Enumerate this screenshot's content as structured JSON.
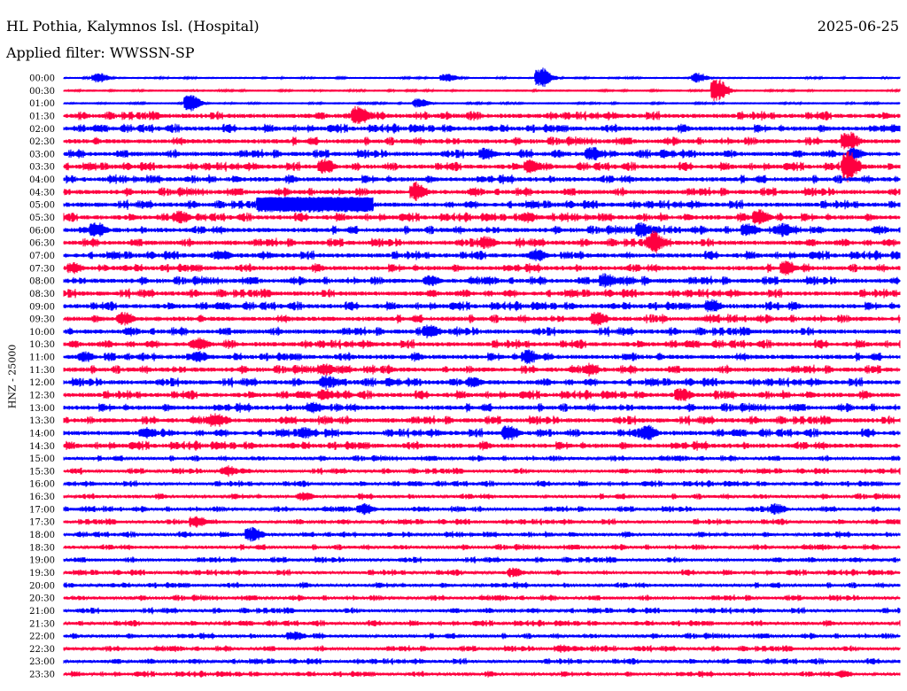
{
  "header": {
    "station": "HL Pothia, Kalymnos Isl. (Hospital)",
    "date": "2025-06-25",
    "filter": "Applied filter: WWSSN-SP"
  },
  "chart_data": {
    "type": "line",
    "title": "HL Pothia, Kalymnos Isl. (Hospital)",
    "ylabel": "HNZ - 25000",
    "xrange_minutes": [
      0,
      30
    ],
    "row_labels": [
      "00:00",
      "00:30",
      "01:00",
      "01:30",
      "02:00",
      "02:30",
      "03:00",
      "03:30",
      "04:00",
      "04:30",
      "05:00",
      "05:30",
      "06:00",
      "06:30",
      "07:00",
      "07:30",
      "08:00",
      "08:30",
      "09:00",
      "09:30",
      "10:00",
      "10:30",
      "11:00",
      "11:30",
      "12:00",
      "12:30",
      "13:00",
      "13:30",
      "14:00",
      "14:30",
      "15:00",
      "15:30",
      "16:00",
      "16:30",
      "17:00",
      "17:30",
      "18:00",
      "18:30",
      "19:00",
      "19:30",
      "20:00",
      "20:30",
      "21:00",
      "21:30",
      "22:00",
      "22:30",
      "23:00",
      "23:30"
    ],
    "colors": {
      "hour": "#0000ff",
      "half_hour": "#ff0040"
    },
    "events": [
      {
        "row": 0,
        "minute": 1.1,
        "amp": 6
      },
      {
        "row": 0,
        "minute": 13.6,
        "amp": 5
      },
      {
        "row": 0,
        "minute": 17.0,
        "amp": 12
      },
      {
        "row": 0,
        "minute": 22.6,
        "amp": 6
      },
      {
        "row": 1,
        "minute": 23.3,
        "amp": 14
      },
      {
        "row": 2,
        "minute": 4.4,
        "amp": 10
      },
      {
        "row": 2,
        "minute": 12.6,
        "amp": 6
      },
      {
        "row": 3,
        "minute": 10.4,
        "amp": 12
      },
      {
        "row": 4,
        "minute": 29.6,
        "amp": 5
      },
      {
        "row": 5,
        "minute": 28.0,
        "amp": 12
      },
      {
        "row": 6,
        "minute": 15.0,
        "amp": 8
      },
      {
        "row": 6,
        "minute": 18.8,
        "amp": 9
      },
      {
        "row": 6,
        "minute": 28.2,
        "amp": 8
      },
      {
        "row": 7,
        "minute": 9.2,
        "amp": 10
      },
      {
        "row": 7,
        "minute": 16.6,
        "amp": 9
      },
      {
        "row": 7,
        "minute": 28.0,
        "amp": 18
      },
      {
        "row": 9,
        "minute": 12.5,
        "amp": 12
      },
      {
        "row": 10,
        "minute": 9.0,
        "amp": 9,
        "width": 4.2
      },
      {
        "row": 11,
        "minute": 4.0,
        "amp": 8
      },
      {
        "row": 11,
        "minute": 16.5,
        "amp": 7
      },
      {
        "row": 11,
        "minute": 24.8,
        "amp": 10
      },
      {
        "row": 12,
        "minute": 1.0,
        "amp": 10
      },
      {
        "row": 12,
        "minute": 20.6,
        "amp": 9
      },
      {
        "row": 12,
        "minute": 24.4,
        "amp": 9
      },
      {
        "row": 12,
        "minute": 25.7,
        "amp": 9
      },
      {
        "row": 13,
        "minute": 15.0,
        "amp": 8
      },
      {
        "row": 13,
        "minute": 21.0,
        "amp": 14
      },
      {
        "row": 14,
        "minute": 5.5,
        "amp": 7
      },
      {
        "row": 14,
        "minute": 16.8,
        "amp": 8
      },
      {
        "row": 15,
        "minute": 0.2,
        "amp": 7
      },
      {
        "row": 15,
        "minute": 25.8,
        "amp": 9
      },
      {
        "row": 16,
        "minute": 13.0,
        "amp": 7
      },
      {
        "row": 16,
        "minute": 19.3,
        "amp": 9
      },
      {
        "row": 18,
        "minute": 23.1,
        "amp": 9
      },
      {
        "row": 19,
        "minute": 2.0,
        "amp": 9
      },
      {
        "row": 19,
        "minute": 19.0,
        "amp": 9
      },
      {
        "row": 20,
        "minute": 13.0,
        "amp": 9
      },
      {
        "row": 21,
        "minute": 4.7,
        "amp": 8
      },
      {
        "row": 22,
        "minute": 0.6,
        "amp": 7
      },
      {
        "row": 22,
        "minute": 4.7,
        "amp": 7
      },
      {
        "row": 22,
        "minute": 16.5,
        "amp": 9
      },
      {
        "row": 23,
        "minute": 9.2,
        "amp": 8
      },
      {
        "row": 23,
        "minute": 18.7,
        "amp": 8
      },
      {
        "row": 24,
        "minute": 9.3,
        "amp": 9
      },
      {
        "row": 24,
        "minute": 14.5,
        "amp": 7
      },
      {
        "row": 25,
        "minute": 9.2,
        "amp": 8
      },
      {
        "row": 25,
        "minute": 22.0,
        "amp": 9
      },
      {
        "row": 26,
        "minute": 8.8,
        "amp": 8
      },
      {
        "row": 27,
        "minute": 5.3,
        "amp": 9
      },
      {
        "row": 28,
        "minute": 2.8,
        "amp": 7
      },
      {
        "row": 28,
        "minute": 8.5,
        "amp": 7
      },
      {
        "row": 28,
        "minute": 15.8,
        "amp": 10
      },
      {
        "row": 28,
        "minute": 20.8,
        "amp": 10
      },
      {
        "row": 31,
        "minute": 5.7,
        "amp": 7
      },
      {
        "row": 33,
        "minute": 8.5,
        "amp": 6
      },
      {
        "row": 34,
        "minute": 10.6,
        "amp": 8
      },
      {
        "row": 34,
        "minute": 25.4,
        "amp": 7
      },
      {
        "row": 35,
        "minute": 4.6,
        "amp": 8
      },
      {
        "row": 36,
        "minute": 6.6,
        "amp": 9
      },
      {
        "row": 39,
        "minute": 16.0,
        "amp": 6
      },
      {
        "row": 44,
        "minute": 8.1,
        "amp": 6
      },
      {
        "row": 45,
        "minute": 17.7,
        "amp": 5
      },
      {
        "row": 47,
        "minute": 27.8,
        "amp": 5
      }
    ]
  }
}
